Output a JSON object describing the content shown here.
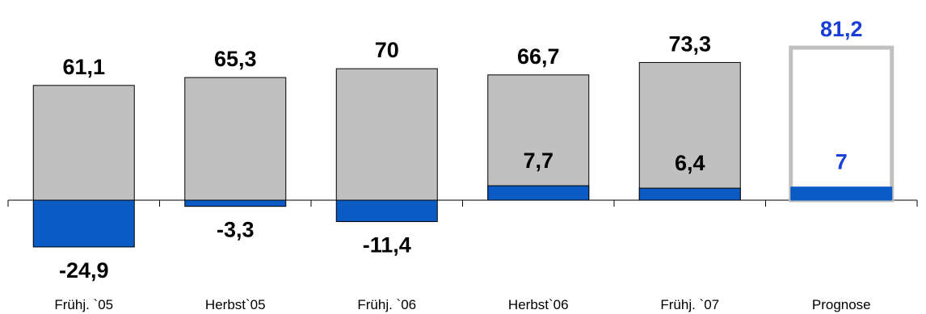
{
  "chart_data": {
    "type": "bar",
    "categories": [
      "Frühj. `05",
      "Herbst`05",
      "Frühj. `06",
      "Herbst`06",
      "Frühj. `07",
      "Prognose"
    ],
    "series": [
      {
        "values": [
          61.1,
          65.3,
          70,
          66.7,
          73.3,
          81.2
        ],
        "labels": [
          "61,1",
          "65,3",
          "70",
          "66,7",
          "73,3",
          "81,2"
        ]
      },
      {
        "values": [
          -24.9,
          -3.3,
          -11.4,
          7.7,
          6.4,
          7
        ],
        "labels": [
          "-24,9",
          "-3,3",
          "-11,4",
          "7,7",
          "6,4",
          "7"
        ]
      }
    ],
    "highlight_index": 5,
    "colors": {
      "bar_fill": "#c0c0c0",
      "bar_stroke": "#000000",
      "balance_fill": "#0a5bc4",
      "forecast_outline": "#c0c0c0",
      "forecast_text": "#1a3fd6",
      "text": "#000000"
    },
    "ylim": [
      -30,
      90
    ],
    "grid": false,
    "legend": "none"
  }
}
